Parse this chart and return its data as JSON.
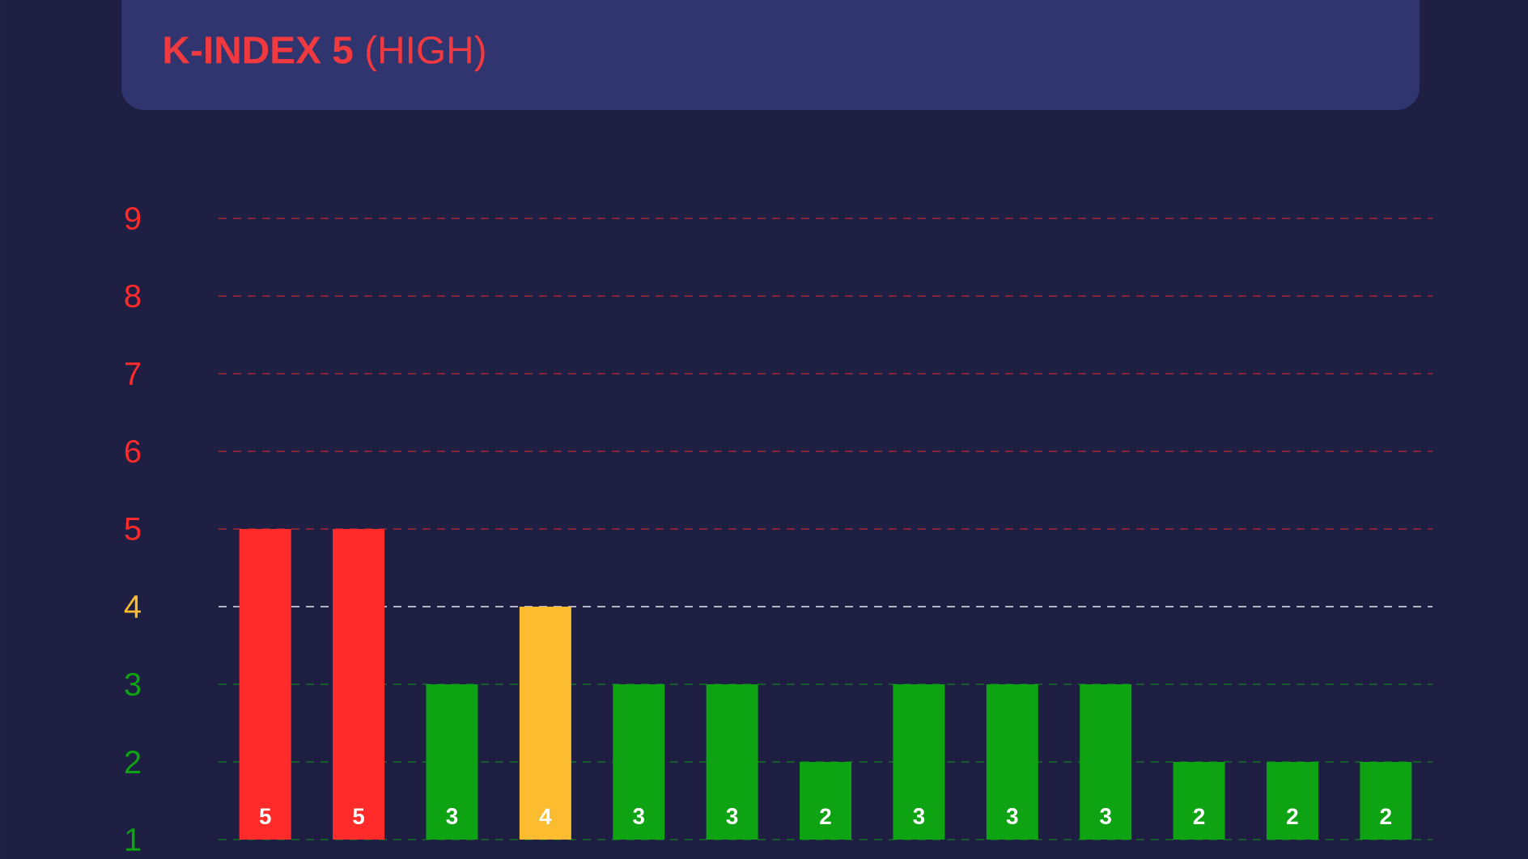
{
  "chart_data": {
    "type": "bar",
    "title": "**K-INDEX 5** (HIGH)",
    "categories": [
      null,
      null,
      null,
      null,
      null,
      null,
      null,
      null,
      null,
      null,
      null,
      null,
      null
    ],
    "values": [
      5,
      5,
      3,
      4,
      3,
      3,
      2,
      3,
      3,
      3,
      2,
      2,
      2
    ],
    "colors": [
      "#ff2b2b",
      "#ff2b2b",
      "#0da312",
      "#fbbd2f",
      "#0da312",
      "#0da312",
      "#0da312",
      "#0da312",
      "#0da312",
      "#0da312",
      "#0da312",
      "#0da312",
      "#0da312"
    ],
    "data_labels": true,
    "grid": "y",
    "ref_lines": [
      {
        "axis": "y",
        "value": 4,
        "color": "#b4b4c4",
        "line_style": "dashed"
      }
    ],
    "ylim": [
      1,
      9
    ],
    "yticks": [
      1,
      2,
      3,
      4,
      5,
      6,
      7,
      8,
      9
    ]
  }
}
